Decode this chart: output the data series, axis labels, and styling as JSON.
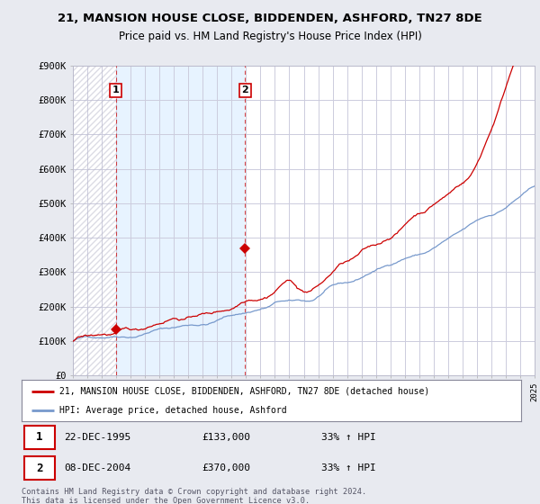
{
  "title1": "21, MANSION HOUSE CLOSE, BIDDENDEN, ASHFORD, TN27 8DE",
  "title2": "Price paid vs. HM Land Registry's House Price Index (HPI)",
  "red_label": "21, MANSION HOUSE CLOSE, BIDDENDEN, ASHFORD, TN27 8DE (detached house)",
  "blue_label": "HPI: Average price, detached house, Ashford",
  "footer": "Contains HM Land Registry data © Crown copyright and database right 2024.\nThis data is licensed under the Open Government Licence v3.0.",
  "ylim": [
    0,
    900000
  ],
  "yticks": [
    0,
    100000,
    200000,
    300000,
    400000,
    500000,
    600000,
    700000,
    800000,
    900000
  ],
  "ytick_labels": [
    "£0",
    "£100K",
    "£200K",
    "£300K",
    "£400K",
    "£500K",
    "£600K",
    "£700K",
    "£800K",
    "£900K"
  ],
  "bg_color": "#e8eaf0",
  "plot_bg": "#ffffff",
  "plot_bg_shaded": "#ddeeff",
  "red_color": "#cc0000",
  "blue_color": "#7799cc",
  "hatch_color": "#bbbbcc",
  "point1_x": 1995.97,
  "point1_y": 133000,
  "point2_x": 2004.94,
  "point2_y": 370000,
  "xmin": 1993,
  "xmax": 2025
}
